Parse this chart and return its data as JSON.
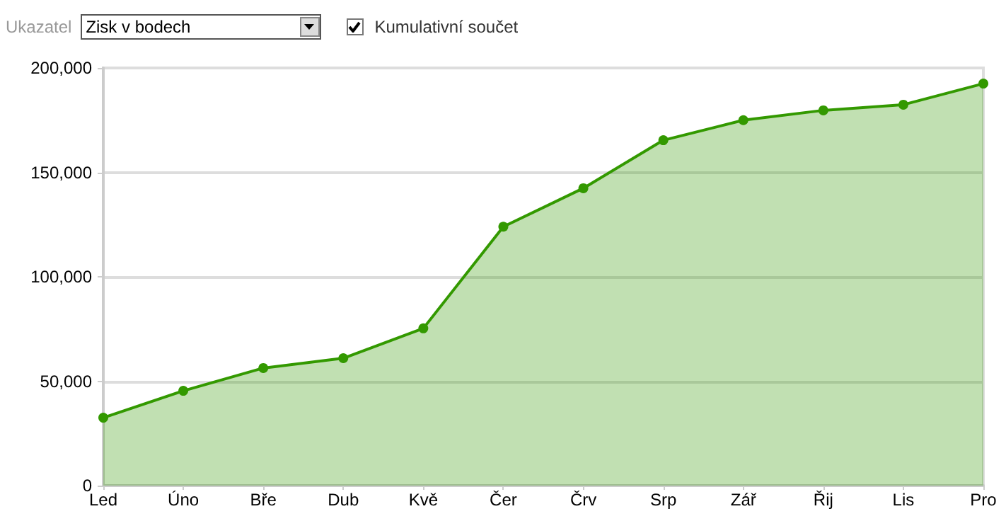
{
  "chart_data": {
    "type": "area",
    "categories": [
      "Led",
      "Úno",
      "Bře",
      "Dub",
      "Kvě",
      "Čer",
      "Črv",
      "Srp",
      "Zář",
      "Řij",
      "Lis",
      "Pro"
    ],
    "series": [
      {
        "color": "#339900",
        "values": [
          32500,
          45400,
          56300,
          61000,
          75300,
          124000,
          142400,
          165400,
          175000,
          179700,
          182400,
          192500
        ]
      }
    ],
    "ylim": [
      0,
      200000
    ],
    "yticks": [
      {
        "value": 0,
        "label": "0"
      },
      {
        "value": 50000,
        "label": "50,000"
      },
      {
        "value": 100000,
        "label": "100,000"
      },
      {
        "value": 150000,
        "label": "150,000"
      },
      {
        "value": 200000,
        "label": "200,000"
      }
    ],
    "grid": "y",
    "marker": "circle",
    "line_style": "solid",
    "annotations": [
      "Ukazatel",
      "Zisk v bodech",
      "Kumulativní součet"
    ]
  }
}
